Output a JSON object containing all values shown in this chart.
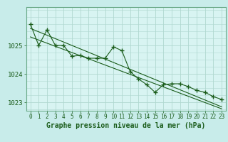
{
  "title": "Graphe pression niveau de la mer (hPa)",
  "bg_color": "#c8ecea",
  "plot_bg_color": "#d8f4f2",
  "grid_color": "#b0d8d0",
  "line_color": "#1a5c1a",
  "border_color": "#6aaa88",
  "x_labels": [
    "0",
    "1",
    "2",
    "3",
    "4",
    "5",
    "6",
    "7",
    "8",
    "9",
    "10",
    "11",
    "12",
    "13",
    "14",
    "15",
    "16",
    "17",
    "18",
    "19",
    "20",
    "21",
    "22",
    "23"
  ],
  "pressure_data": [
    1025.75,
    1025.0,
    1025.55,
    1025.0,
    1025.0,
    1024.62,
    1024.65,
    1024.55,
    1024.55,
    1024.55,
    1024.95,
    1024.82,
    1024.08,
    1023.82,
    1023.62,
    1023.35,
    1023.62,
    1023.65,
    1023.65,
    1023.55,
    1023.42,
    1023.35,
    1023.2,
    1023.1
  ],
  "trend1": [
    1025.6,
    1025.48,
    1025.36,
    1025.24,
    1025.12,
    1025.0,
    1024.88,
    1024.76,
    1024.64,
    1024.52,
    1024.4,
    1024.28,
    1024.16,
    1024.04,
    1023.92,
    1023.8,
    1023.68,
    1023.56,
    1023.44,
    1023.32,
    1023.2,
    1023.08,
    1022.96,
    1022.84
  ],
  "trend2": [
    1025.3,
    1025.19,
    1025.08,
    1024.97,
    1024.86,
    1024.75,
    1024.64,
    1024.53,
    1024.42,
    1024.31,
    1024.2,
    1024.09,
    1023.98,
    1023.87,
    1023.76,
    1023.65,
    1023.54,
    1023.43,
    1023.32,
    1023.21,
    1023.1,
    1022.99,
    1022.88,
    1022.77
  ],
  "ylim_min": 1022.7,
  "ylim_max": 1026.35,
  "yticks": [
    1023.0,
    1024.0,
    1025.0
  ],
  "ylabel_fontsize": 6.5,
  "xlabel_fontsize": 5.5,
  "title_fontsize": 7.0,
  "marker_size": 4
}
